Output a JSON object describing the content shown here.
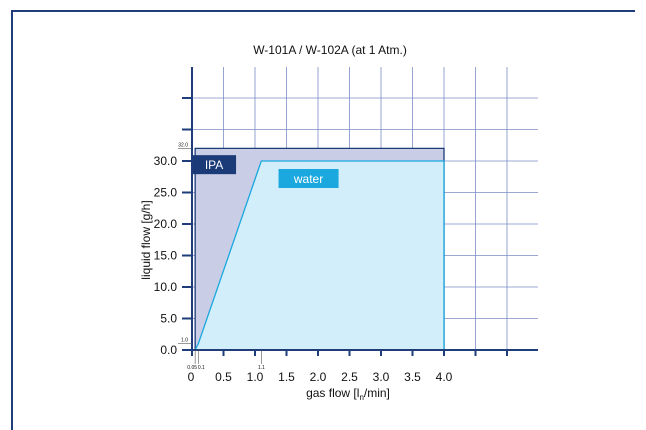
{
  "chart_data": {
    "type": "area",
    "title": "W-101A / W-102A (at 1 Atm.)",
    "xlabel": "gas flow [l",
    "xlabel_sub": "n",
    "xlabel_end": "/min]",
    "ylabel": "liquid flow [g/h]",
    "xlim": [
      0,
      4.8
    ],
    "ylim": [
      0,
      50
    ],
    "grid": true,
    "x_ticks": [
      "0",
      "0.5",
      "1.0",
      "1.5",
      "2.0",
      "2.5",
      "3.0",
      "3.5",
      "4.0"
    ],
    "x_tick_values": [
      0,
      0.5,
      1.0,
      1.5,
      2.0,
      2.5,
      3.0,
      3.5,
      4.0
    ],
    "x_minor_labels": [
      "0.05",
      "0.1",
      "1.1"
    ],
    "x_minor_values": [
      0.05,
      0.1,
      1.1
    ],
    "y_ticks": [
      "0.0",
      "5.0",
      "10.0",
      "15.0",
      "20.0",
      "25.0",
      "30.0"
    ],
    "y_tick_values": [
      0,
      5,
      10,
      15,
      20,
      25,
      30
    ],
    "y_minor_labels": [
      "1.0",
      "32.0"
    ],
    "y_minor_values": [
      1.0,
      32.0
    ],
    "series": [
      {
        "name": "IPA",
        "color": "#c9cde5",
        "label_color": "#1b3a78",
        "x": [
          0.05,
          0.05,
          4.0,
          4.0
        ],
        "y": [
          0,
          32.0,
          32.0,
          0
        ]
      },
      {
        "name": "water",
        "color": "#d3eefb",
        "label_color": "#1aa8df",
        "x": [
          0.05,
          0.1,
          1.1,
          4.0,
          4.0
        ],
        "y": [
          0,
          1.0,
          30.0,
          30.0,
          0
        ]
      }
    ]
  }
}
